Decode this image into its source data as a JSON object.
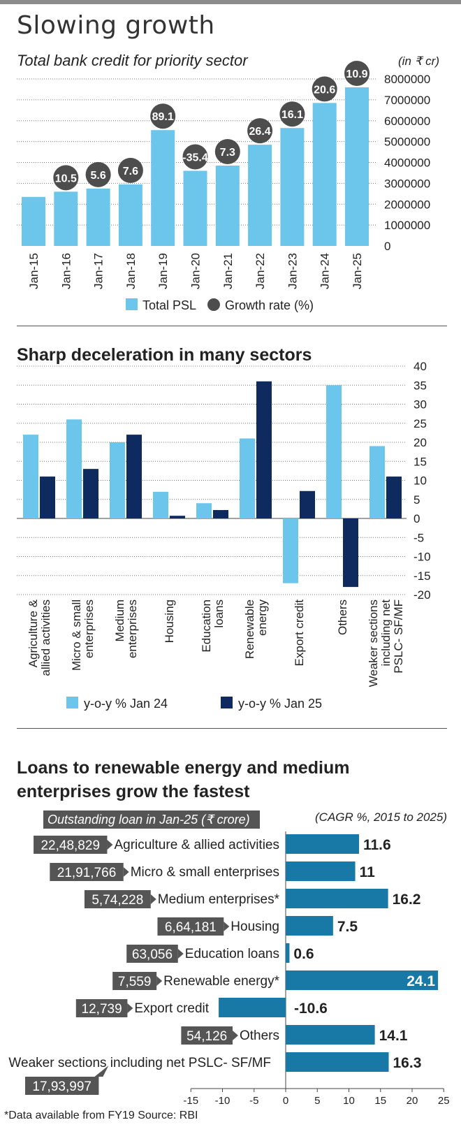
{
  "section1": {
    "title": "Slowing growth",
    "subtitle": "Total bank credit for priority sector",
    "unit": "(in ₹ cr)",
    "legend": [
      "Total PSL",
      "Growth rate (%)"
    ]
  },
  "section2": {
    "title": "Sharp deceleration in many sectors",
    "legend": [
      "y-o-y % Jan 24",
      "y-o-y % Jan 25"
    ]
  },
  "section3": {
    "title": "Loans to renewable energy and medium enterprises grow the fastest",
    "left_caption": "Outstanding loan in Jan-25 (₹ crore)",
    "right_caption": "(CAGR %, 2015 to 2025)"
  },
  "footnote": "*Data available from FY19    Source: RBI",
  "colors": {
    "light": "#6cc6ec",
    "dark": "#0f2a5e",
    "teal": "#1878a6",
    "circle": "#4d4d4d",
    "box": "#555555"
  },
  "chart_data": [
    {
      "type": "bar",
      "title": "Slowing growth",
      "subtitle": "Total bank credit for priority sector",
      "categories": [
        "Jan-15",
        "Jan-16",
        "Jan-17",
        "Jan-18",
        "Jan-19",
        "Jan-20",
        "Jan-21",
        "Jan-22",
        "Jan-23",
        "Jan-24",
        "Jan-25"
      ],
      "series": [
        {
          "name": "Total PSL",
          "values": [
            2350000,
            2600000,
            2750000,
            2950000,
            5550000,
            3600000,
            3850000,
            4850000,
            5650000,
            6850000,
            7600000
          ]
        },
        {
          "name": "Growth rate (%)",
          "values": [
            null,
            10.5,
            5.6,
            7.6,
            89.1,
            -35.4,
            7.3,
            26.4,
            16.1,
            20.6,
            10.9
          ]
        }
      ],
      "ylim": [
        0,
        8000000
      ],
      "yticks": [
        0,
        1000000,
        2000000,
        3000000,
        4000000,
        5000000,
        6000000,
        7000000,
        8000000
      ],
      "ylabel": "(in ₹ cr)",
      "grid": true,
      "legend": "bottom"
    },
    {
      "type": "bar",
      "title": "Sharp deceleration in many sectors",
      "categories": [
        "Agriculture & allied activities",
        "Micro & small enterprises",
        "Medium enterprises",
        "Housing",
        "Education loans",
        "Renewable energy",
        "Export credit",
        "Others",
        "Weaker sections including net PSLC- SF/MF"
      ],
      "series": [
        {
          "name": "y-o-y % Jan 24",
          "values": [
            22,
            26,
            20,
            7,
            4,
            21,
            -17,
            35,
            19
          ]
        },
        {
          "name": "y-o-y % Jan 25",
          "values": [
            11,
            13,
            22,
            0.7,
            2.2,
            36,
            7.2,
            -18,
            11
          ]
        }
      ],
      "ylim": [
        -20,
        40
      ],
      "yticks": [
        -20,
        -15,
        -10,
        -5,
        0,
        5,
        10,
        15,
        20,
        25,
        30,
        35,
        40
      ],
      "grid": true,
      "legend": "bottom"
    },
    {
      "type": "bar",
      "title": "Loans to renewable energy and medium enterprises grow the fastest",
      "orientation": "horizontal",
      "categories": [
        "Agriculture & allied activities",
        "Micro & small enterprises",
        "Medium enterprises*",
        "Housing",
        "Education loans",
        "Renewable energy*",
        "Export credit",
        "Others",
        "Weaker sections including net PSLC- SF/MF"
      ],
      "outstanding": [
        "22,48,829",
        "21,91,766",
        "5,74,228",
        "6,64,181",
        "63,056",
        "7,559",
        "12,739",
        "54,126",
        "17,93,997"
      ],
      "values": [
        11.6,
        11,
        16.2,
        7.5,
        0.6,
        24.1,
        -10.6,
        14.1,
        16.3
      ],
      "value_labels": [
        "11.6",
        "11",
        "16.2",
        "7.5",
        "0.6",
        "24.1",
        "-10.6",
        "14.1",
        "16.3"
      ],
      "xlim": [
        -15,
        25
      ],
      "xticks": [
        -15,
        -10,
        -5,
        0,
        5,
        10,
        15,
        20,
        25
      ],
      "xlabel": "(CAGR %, 2015 to 2025)"
    }
  ]
}
